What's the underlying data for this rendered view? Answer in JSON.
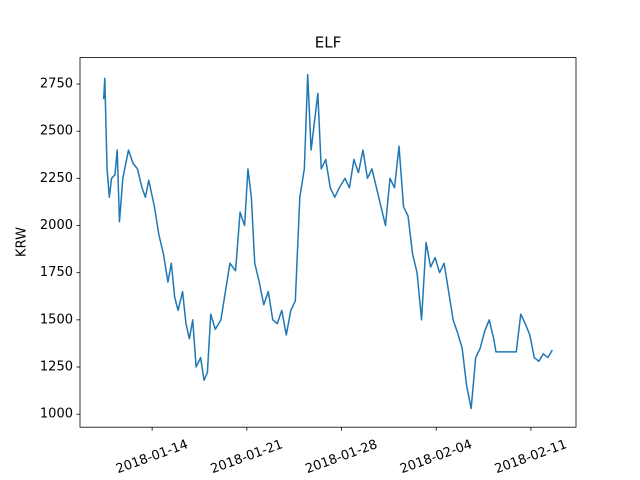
{
  "chart_data": {
    "type": "line",
    "title": "ELF",
    "y_label": "KRW",
    "color": "#1f77b4",
    "x": [
      "2018-01-10 10:00",
      "2018-01-10 12:00",
      "2018-01-10 16:00",
      "2018-01-10 20:00",
      "2018-01-11 00:00",
      "2018-01-11 06:00",
      "2018-01-11 10:00",
      "2018-01-11 14:00",
      "2018-01-11 20:00",
      "2018-01-12 06:00",
      "2018-01-12 14:00",
      "2018-01-12 22:00",
      "2018-01-13 06:00",
      "2018-01-13 12:00",
      "2018-01-13 18:00",
      "2018-01-14 04:00",
      "2018-01-14 12:00",
      "2018-01-14 20:00",
      "2018-01-15 04:00",
      "2018-01-15 10:00",
      "2018-01-15 16:00",
      "2018-01-15 22:00",
      "2018-01-16 06:00",
      "2018-01-16 12:00",
      "2018-01-16 18:00",
      "2018-01-17 00:00",
      "2018-01-17 06:00",
      "2018-01-17 14:00",
      "2018-01-17 20:00",
      "2018-01-18 02:00",
      "2018-01-18 08:00",
      "2018-01-18 16:00",
      "2018-01-19 02:00",
      "2018-01-19 10:00",
      "2018-01-19 18:00",
      "2018-01-20 04:00",
      "2018-01-20 12:00",
      "2018-01-20 20:00",
      "2018-01-21 02:00",
      "2018-01-21 08:00",
      "2018-01-21 14:00",
      "2018-01-21 22:00",
      "2018-01-22 06:00",
      "2018-01-22 14:00",
      "2018-01-22 22:00",
      "2018-01-23 06:00",
      "2018-01-23 14:00",
      "2018-01-23 22:00",
      "2018-01-24 06:00",
      "2018-01-24 14:00",
      "2018-01-24 22:00",
      "2018-01-25 06:00",
      "2018-01-25 12:00",
      "2018-01-25 18:00",
      "2018-01-26 00:00",
      "2018-01-26 06:00",
      "2018-01-26 12:00",
      "2018-01-26 20:00",
      "2018-01-27 04:00",
      "2018-01-27 12:00",
      "2018-01-27 20:00",
      "2018-01-28 06:00",
      "2018-01-28 14:00",
      "2018-01-28 22:00",
      "2018-01-29 06:00",
      "2018-01-29 14:00",
      "2018-01-29 22:00",
      "2018-01-30 06:00",
      "2018-01-30 14:00",
      "2018-01-30 22:00",
      "2018-01-31 06:00",
      "2018-01-31 14:00",
      "2018-01-31 22:00",
      "2018-02-01 06:00",
      "2018-02-01 14:00",
      "2018-02-01 22:00",
      "2018-02-02 06:00",
      "2018-02-02 14:00",
      "2018-02-02 22:00",
      "2018-02-03 06:00",
      "2018-02-03 14:00",
      "2018-02-03 22:00",
      "2018-02-04 06:00",
      "2018-02-04 14:00",
      "2018-02-04 22:00",
      "2018-02-05 06:00",
      "2018-02-05 14:00",
      "2018-02-05 22:00",
      "2018-02-06 06:00",
      "2018-02-06 14:00",
      "2018-02-06 22:00",
      "2018-02-07 06:00",
      "2018-02-07 14:00",
      "2018-02-07 22:00",
      "2018-02-08 06:00",
      "2018-02-08 10:00",
      "2018-02-09 22:00",
      "2018-02-10 06:00",
      "2018-02-10 14:00",
      "2018-02-10 22:00",
      "2018-02-11 06:00",
      "2018-02-11 14:00",
      "2018-02-11 22:00",
      "2018-02-12 06:00",
      "2018-02-12 14:00"
    ],
    "values": [
      2670,
      2780,
      2300,
      2150,
      2250,
      2270,
      2400,
      2020,
      2250,
      2400,
      2330,
      2300,
      2200,
      2150,
      2240,
      2100,
      1950,
      1850,
      1700,
      1800,
      1620,
      1550,
      1650,
      1480,
      1400,
      1500,
      1250,
      1300,
      1180,
      1220,
      1530,
      1450,
      1500,
      1650,
      1800,
      1760,
      2070,
      2000,
      2300,
      2150,
      1800,
      1700,
      1580,
      1650,
      1500,
      1480,
      1550,
      1420,
      1550,
      1600,
      2150,
      2300,
      2800,
      2400,
      2550,
      2700,
      2300,
      2350,
      2200,
      2150,
      2200,
      2250,
      2200,
      2350,
      2280,
      2400,
      2250,
      2300,
      2200,
      2100,
      2000,
      2250,
      2200,
      2420,
      2100,
      2050,
      1850,
      1750,
      1500,
      1910,
      1780,
      1830,
      1750,
      1800,
      1650,
      1500,
      1430,
      1350,
      1150,
      1030,
      1300,
      1350,
      1440,
      1500,
      1400,
      1330,
      1330,
      1530,
      1480,
      1420,
      1300,
      1280,
      1320,
      1300,
      1340
    ],
    "xlim": [
      "2018-01-08 16:00",
      "2018-02-14 08:00"
    ],
    "xticks": [
      "2018-01-14",
      "2018-01-21",
      "2018-01-28",
      "2018-02-04",
      "2018-02-11"
    ],
    "ylim": [
      931,
      2890
    ],
    "yticks": [
      1000,
      1250,
      1500,
      1750,
      2000,
      2250,
      2500,
      2750
    ]
  }
}
